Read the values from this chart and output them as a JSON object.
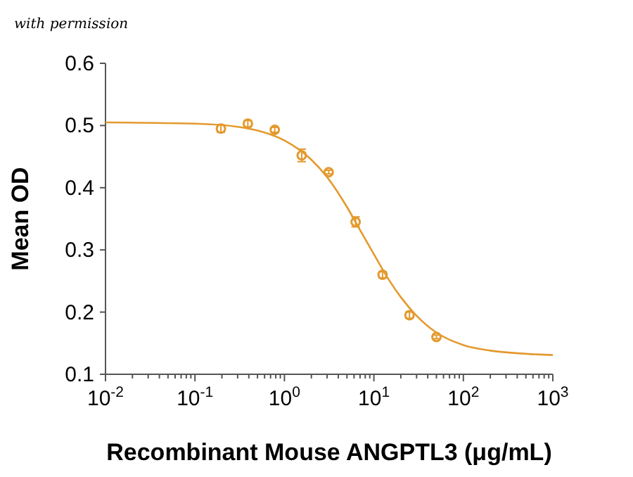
{
  "chart_data": {
    "type": "scatter",
    "annotations": [
      "with permission"
    ],
    "xlabel": "Recombinant Mouse ANGPTL3 (μg/mL)",
    "ylabel": "Mean OD",
    "log": "x",
    "grid": false,
    "xlim": [
      0.01,
      1000
    ],
    "ylim": [
      0.1,
      0.6
    ],
    "xticks": [
      {
        "value": 0.01,
        "label": "10$^{-2}$"
      },
      {
        "value": 0.02,
        "label": null
      },
      {
        "value": 0.03,
        "label": null
      },
      {
        "value": 0.04,
        "label": null
      },
      {
        "value": 0.05,
        "label": null
      },
      {
        "value": 0.06,
        "label": null
      },
      {
        "value": 0.07,
        "label": null
      },
      {
        "value": 0.08,
        "label": null
      },
      {
        "value": 0.09,
        "label": null
      },
      {
        "value": 0.1,
        "label": "10$^{-1}$"
      },
      {
        "value": 0.2,
        "label": null
      },
      {
        "value": 0.3,
        "label": null
      },
      {
        "value": 0.4,
        "label": null
      },
      {
        "value": 0.5,
        "label": null
      },
      {
        "value": 0.6,
        "label": null
      },
      {
        "value": 0.7,
        "label": null
      },
      {
        "value": 0.8,
        "label": null
      },
      {
        "value": 0.9,
        "label": null
      },
      {
        "value": 1,
        "label": "10$^{0}$"
      },
      {
        "value": 2,
        "label": null
      },
      {
        "value": 3,
        "label": null
      },
      {
        "value": 4,
        "label": null
      },
      {
        "value": 5,
        "label": null
      },
      {
        "value": 6,
        "label": null
      },
      {
        "value": 7,
        "label": null
      },
      {
        "value": 8,
        "label": null
      },
      {
        "value": 9,
        "label": null
      },
      {
        "value": 10,
        "label": "10$^{1}$"
      },
      {
        "value": 20,
        "label": null
      },
      {
        "value": 30,
        "label": null
      },
      {
        "value": 40,
        "label": null
      },
      {
        "value": 50,
        "label": null
      },
      {
        "value": 60,
        "label": null
      },
      {
        "value": 70,
        "label": null
      },
      {
        "value": 80,
        "label": null
      },
      {
        "value": 90,
        "label": null
      },
      {
        "value": 100,
        "label": "10$^{2}$"
      },
      {
        "value": 200,
        "label": null
      },
      {
        "value": 300,
        "label": null
      },
      {
        "value": 400,
        "label": null
      },
      {
        "value": 500,
        "label": null
      },
      {
        "value": 600,
        "label": null
      },
      {
        "value": 700,
        "label": null
      },
      {
        "value": 800,
        "label": null
      },
      {
        "value": 900,
        "label": null
      },
      {
        "value": 1000,
        "label": "10$^{3}$"
      }
    ],
    "yticks": [
      0.1,
      0.2,
      0.3,
      0.4,
      0.5,
      0.6
    ],
    "series": [
      {
        "color": "#e39a2e",
        "marker": "circle",
        "x": [
          0.195,
          0.39,
          0.78,
          1.56,
          3.125,
          6.25,
          12.5,
          25,
          50
        ],
        "values": [
          0.495,
          0.503,
          0.493,
          0.452,
          0.425,
          0.345,
          0.26,
          0.195,
          0.16
        ],
        "errors": [
          0.006,
          0.005,
          0.004,
          0.01,
          0.003,
          0.008,
          0.005,
          0.005,
          0.003
        ]
      },
      {
        "type": "line",
        "color": "#e39a2e",
        "marker": "none",
        "line_style": "solid",
        "x": [
          0.01,
          0.1,
          0.3,
          0.5,
          1,
          2,
          3,
          5,
          7,
          10,
          15,
          20,
          30,
          50,
          100,
          200,
          500,
          1000
        ],
        "values": [
          0.505,
          0.503,
          0.498,
          0.492,
          0.476,
          0.445,
          0.417,
          0.369,
          0.332,
          0.293,
          0.25,
          0.224,
          0.194,
          0.167,
          0.147,
          0.138,
          0.133,
          0.131
        ]
      }
    ]
  }
}
